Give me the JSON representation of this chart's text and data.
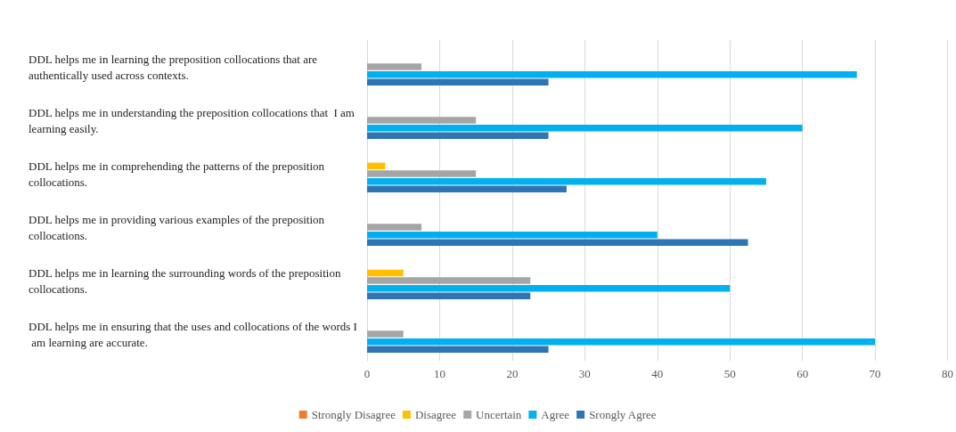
{
  "chart_data": {
    "type": "bar",
    "orientation": "horizontal",
    "categories": [
      "DDL helps me in learning the preposition collocations that are authentically used across contexts.",
      "DDL helps me in understanding the preposition collocations that  I am learning easily.",
      "DDL helps me in comprehending the patterns of the preposition collocations.",
      "DDL helps me in providing various examples of the preposition collocations.",
      "DDL helps me in learning the surrounding words of the preposition collocations.",
      "DDL helps me in ensuring that the uses and collocations of the words I am learning are accurate."
    ],
    "series": [
      {
        "name": "Strongly Disagree",
        "color": "#ed7d31",
        "values": [
          0,
          0,
          0,
          0,
          0,
          0
        ]
      },
      {
        "name": "Disagree",
        "color": "#ffc000",
        "values": [
          0,
          0,
          2.5,
          0,
          5,
          0
        ]
      },
      {
        "name": "Uncertain",
        "color": "#a5a5a5",
        "values": [
          7.5,
          15,
          15,
          7.5,
          22.5,
          5
        ]
      },
      {
        "name": "Agree",
        "color": "#00b0f0",
        "values": [
          67.5,
          60,
          55,
          40,
          50,
          70
        ]
      },
      {
        "name": "Srongly Agree",
        "color": "#2e75b6",
        "values": [
          25,
          25,
          27.5,
          52.5,
          22.5,
          25
        ]
      }
    ],
    "xlim": [
      0,
      80
    ],
    "xticks": [
      0,
      10,
      20,
      30,
      40,
      50,
      60,
      70,
      80
    ],
    "grid": "x",
    "legend": "bottom"
  }
}
